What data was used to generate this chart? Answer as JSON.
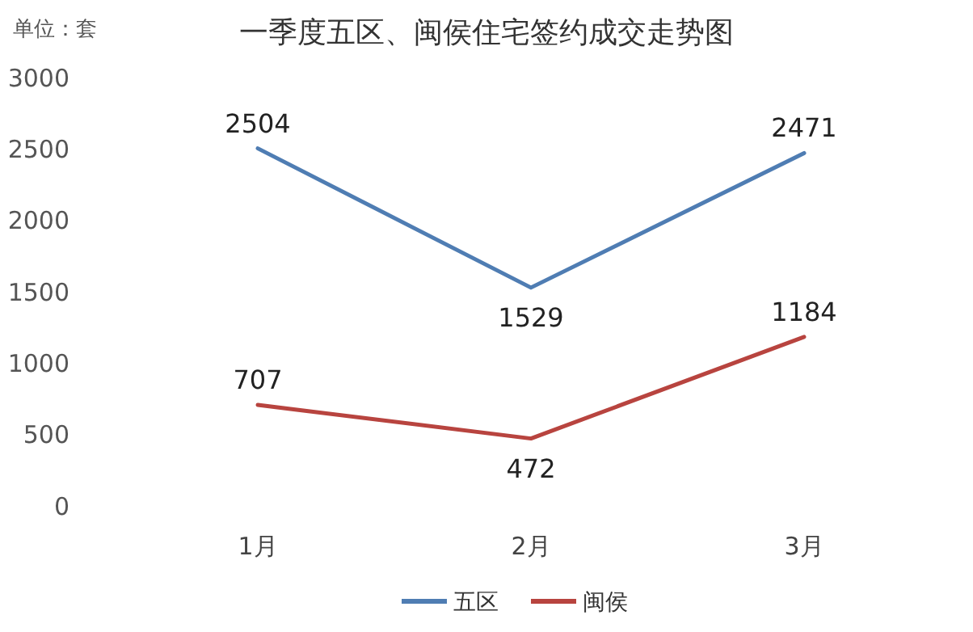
{
  "chart_data": {
    "type": "line",
    "title": "一季度五区、闽侯住宅签约成交走势图",
    "ylabel": "单位：套",
    "categories": [
      "1月",
      "2月",
      "3月"
    ],
    "series": [
      {
        "name": "五区",
        "color": "#4f7db3",
        "values": [
          2504,
          1529,
          2471
        ]
      },
      {
        "name": "闽侯",
        "color": "#b8443f",
        "values": [
          707,
          472,
          1184
        ]
      }
    ],
    "ylim": [
      0,
      3000
    ],
    "yticks": [
      0,
      500,
      1000,
      1500,
      2000,
      2500,
      3000
    ],
    "grid": false,
    "legend": "bottom",
    "data_labels": true,
    "marker": "none",
    "line_style": "solid"
  }
}
